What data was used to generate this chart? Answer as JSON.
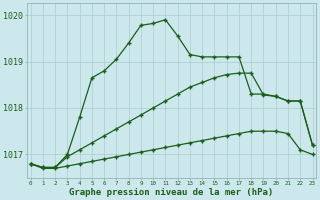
{
  "title": "Graphe pression niveau de la mer (hPa)",
  "bg_color": "#cce8ec",
  "grid_color": "#aacccc",
  "line_color": "#1a5e1a",
  "hours": [
    0,
    1,
    2,
    3,
    4,
    5,
    6,
    7,
    8,
    9,
    10,
    11,
    12,
    13,
    14,
    15,
    16,
    17,
    18,
    19,
    20,
    21,
    22,
    23
  ],
  "line1": [
    1016.8,
    1016.7,
    1016.7,
    1016.75,
    1016.8,
    1016.85,
    1016.9,
    1016.95,
    1017.0,
    1017.05,
    1017.1,
    1017.15,
    1017.2,
    1017.25,
    1017.3,
    1017.35,
    1017.4,
    1017.45,
    1017.5,
    1017.5,
    1017.5,
    1017.45,
    1017.1,
    1017.0
  ],
  "line2": [
    1016.8,
    1016.72,
    1016.72,
    1017.0,
    1017.8,
    1018.65,
    1018.8,
    1019.05,
    1019.4,
    1019.78,
    1019.82,
    1019.9,
    1019.55,
    1019.15,
    1019.1,
    1019.1,
    1019.1,
    1019.1,
    1018.3,
    1018.3,
    1018.25,
    1018.15,
    1018.15,
    1017.2
  ],
  "line3": [
    1016.8,
    1016.72,
    1016.72,
    1016.95,
    1017.1,
    1017.25,
    1017.4,
    1017.55,
    1017.7,
    1017.85,
    1018.0,
    1018.15,
    1018.3,
    1018.45,
    1018.55,
    1018.65,
    1018.72,
    1018.75,
    1018.75,
    1018.28,
    1018.25,
    1018.15,
    1018.15,
    1017.2
  ],
  "ylim_min": 1016.5,
  "ylim_max": 1020.25,
  "yticks": [
    1017,
    1018,
    1019,
    1020
  ]
}
